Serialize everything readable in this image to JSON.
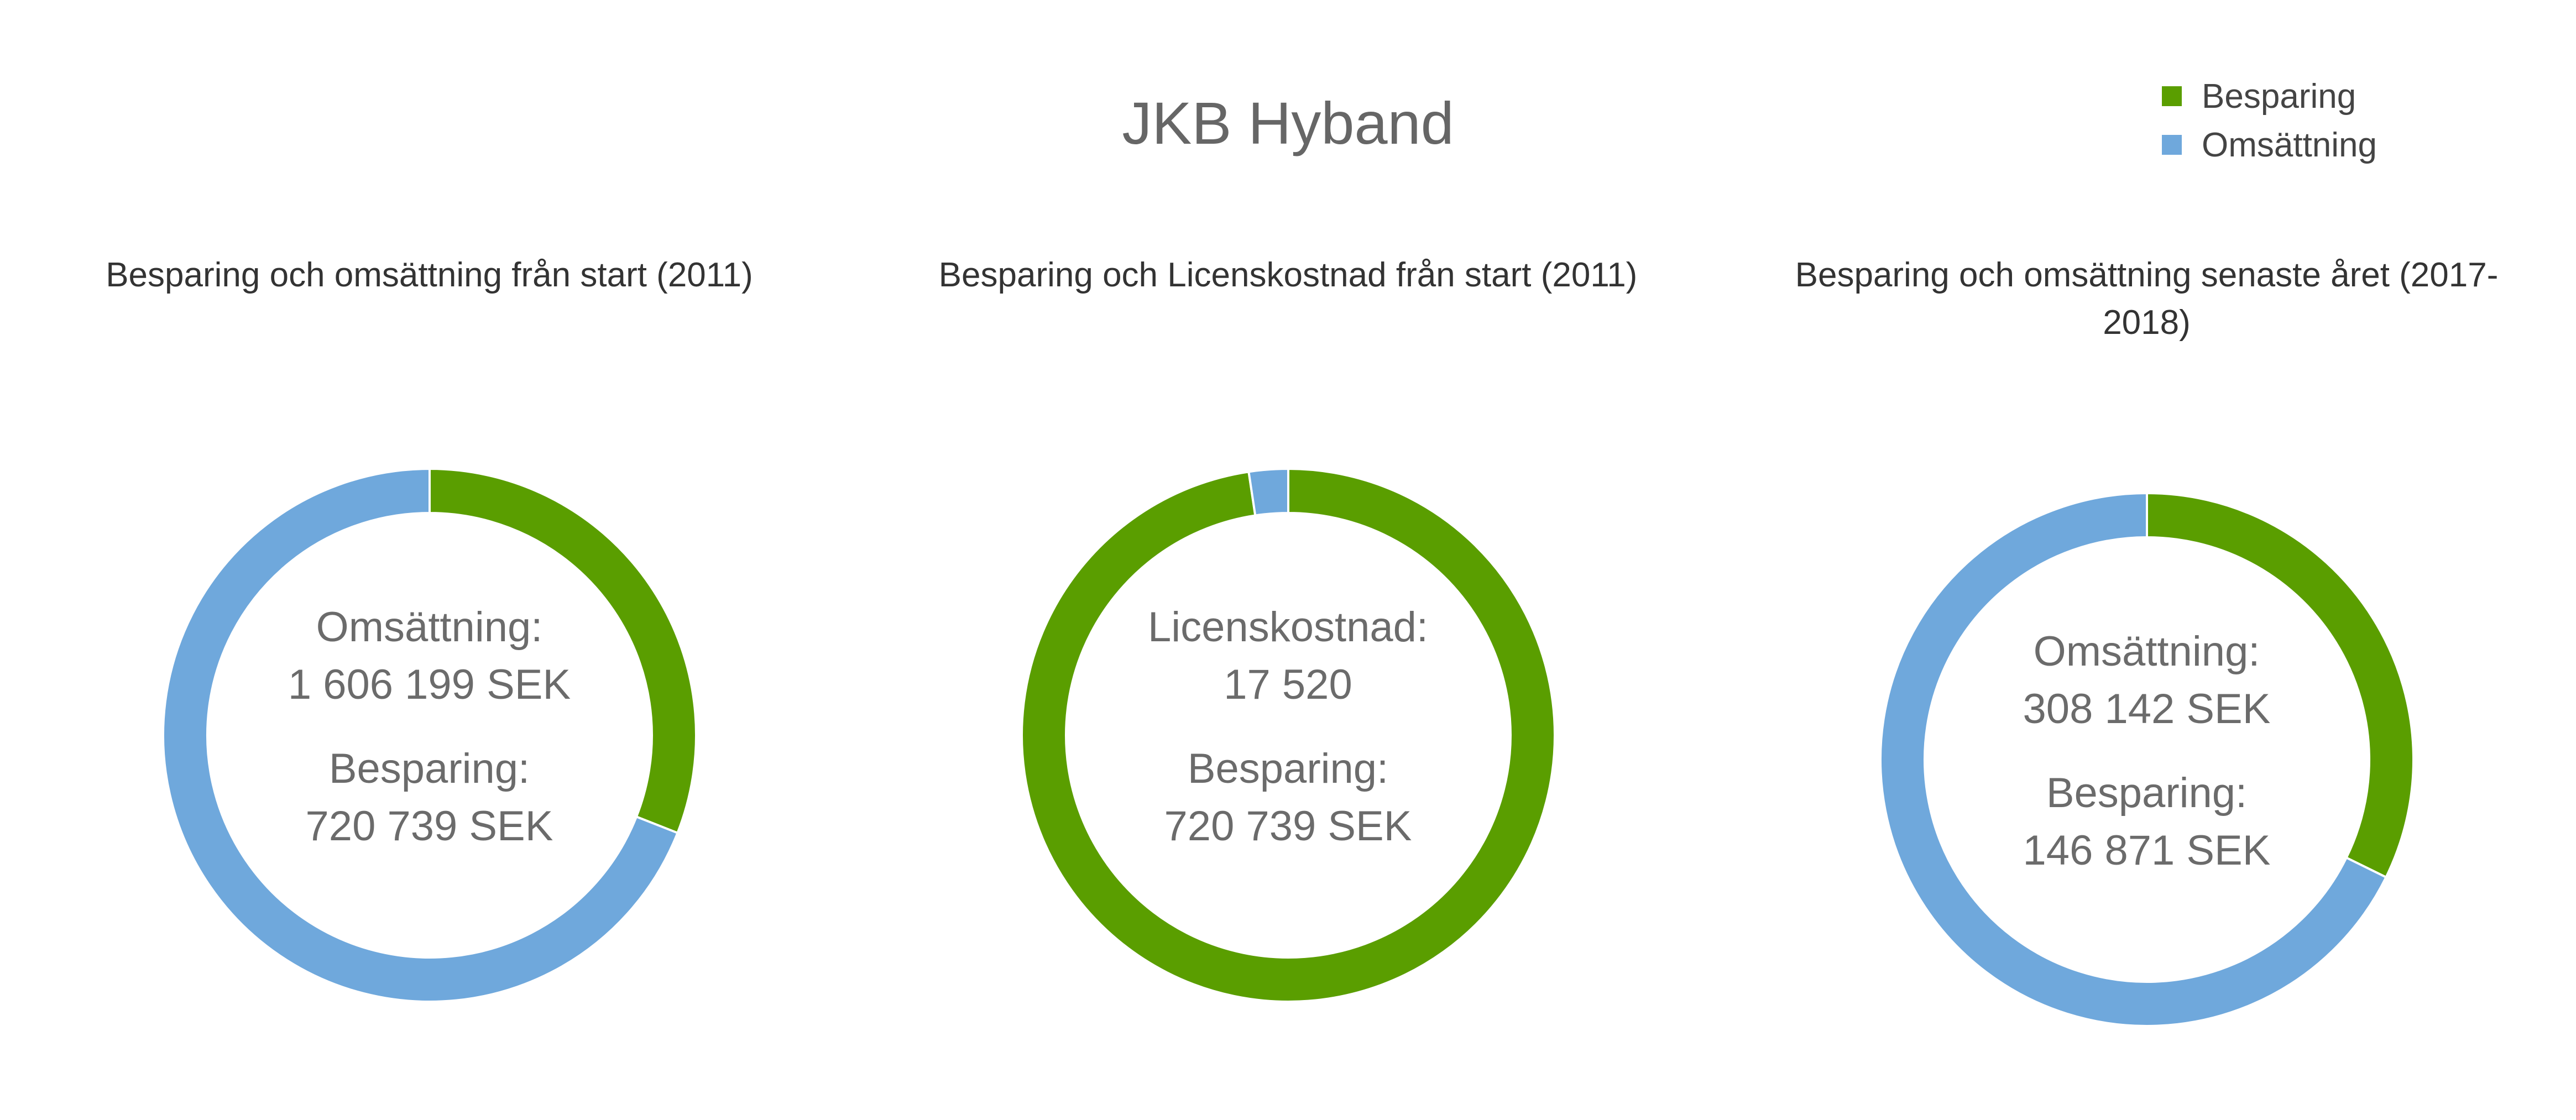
{
  "title": "JKB Hyband",
  "legend": [
    {
      "label": "Besparing",
      "color": "#5a9e00"
    },
    {
      "label": "Omsättning",
      "color": "#6fa8dc"
    }
  ],
  "colors": {
    "besparing": "#5a9e00",
    "omsattning": "#6fa8dc",
    "licens": "#6fa8dc"
  },
  "chart_data": [
    {
      "type": "pie",
      "title": "Besparing och omsättning från start (2011)",
      "slices": [
        {
          "name": "Besparing",
          "value": 720739,
          "color": "#5a9e00"
        },
        {
          "name": "Omsättning",
          "value": 1606199,
          "color": "#6fa8dc"
        }
      ],
      "center": {
        "line1": "Omsättning:",
        "line2": "1 606 199 SEK",
        "line3": "Besparing:",
        "line4": "720 739 SEK"
      }
    },
    {
      "type": "pie",
      "title": "Besparing och Licenskostnad från start (2011)",
      "slices": [
        {
          "name": "Besparing",
          "value": 720739,
          "color": "#5a9e00"
        },
        {
          "name": "Licenskostnad",
          "value": 17520,
          "color": "#6fa8dc"
        }
      ],
      "center": {
        "line1": "Licenskostnad:",
        "line2": "17 520",
        "line3": "Besparing:",
        "line4": "720 739 SEK"
      }
    },
    {
      "type": "pie",
      "title": "Besparing och omsättning senaste året (2017-2018)",
      "slices": [
        {
          "name": "Besparing",
          "value": 146871,
          "color": "#5a9e00"
        },
        {
          "name": "Omsättning",
          "value": 308142,
          "color": "#6fa8dc"
        }
      ],
      "center": {
        "line1": "Omsättning:",
        "line2": "308 142 SEK",
        "line3": "Besparing:",
        "line4": "146 871 SEK"
      }
    }
  ]
}
